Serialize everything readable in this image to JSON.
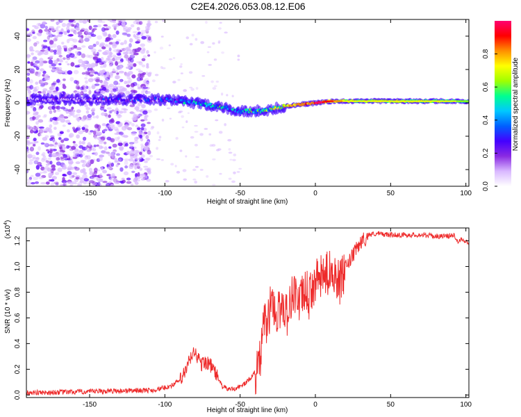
{
  "title": "C2E4.2026.053.08.12.E06",
  "chart_data": [
    {
      "type": "heatmap",
      "xlabel": "Height of straight line (km)",
      "ylabel": "Frequency (Hz)",
      "xlim": [
        -192,
        102
      ],
      "ylim": [
        -50,
        50
      ],
      "xticks": [
        -150,
        -100,
        -50,
        0,
        50,
        100
      ],
      "yticks": [
        -40,
        -20,
        0,
        20,
        40
      ],
      "colorbar": {
        "label": "Normalized spectral amplitude",
        "range": [
          0.0,
          1.0
        ],
        "ticks": [
          0.0,
          0.2,
          0.4,
          0.6,
          0.8
        ],
        "tick_labels": [
          "0.0",
          "0.2",
          "0.4",
          "0.6",
          "0.8"
        ],
        "colors": [
          "#ffffff",
          "#d9b8ff",
          "#8a2be2",
          "#4400ff",
          "#0060ff",
          "#00c8ff",
          "#00ff90",
          "#a0ff00",
          "#ffff00",
          "#ff9000",
          "#ff0000",
          "#ff0070"
        ]
      },
      "ridge": {
        "height_km": [
          -190,
          -150,
          -120,
          -100,
          -80,
          -60,
          -50,
          -40,
          -30,
          -20,
          -10,
          0,
          10,
          20,
          50,
          80,
          100
        ],
        "frequency_hz": [
          2,
          2,
          2,
          2,
          0,
          -3,
          -5,
          -5,
          -4,
          -2,
          -1,
          0,
          1,
          1,
          1,
          1,
          1
        ],
        "amplitude": [
          0.1,
          0.15,
          0.2,
          0.3,
          0.4,
          0.45,
          0.4,
          0.45,
          0.55,
          0.7,
          0.8,
          0.85,
          0.75,
          0.6,
          0.6,
          0.6,
          0.5
        ]
      },
      "noise_region_km": [
        -192,
        -110
      ]
    },
    {
      "type": "line",
      "title": "",
      "xlabel": "Height of straight line (km)",
      "ylabel": "SNR (10 * v/v)",
      "y_multiplier_label": "(x10",
      "y_multiplier_exponent": "4",
      "xlim": [
        -192,
        102
      ],
      "ylim": [
        -0.02,
        1.3
      ],
      "xticks": [
        -150,
        -100,
        -50,
        0,
        50,
        100
      ],
      "yticks": [
        0.0,
        0.2,
        0.4,
        0.6,
        0.8,
        1.0,
        1.2
      ],
      "ytick_labels": [
        "0.0",
        "0.2",
        "0.4",
        "0.6",
        "0.8",
        "1.0",
        "1.2"
      ],
      "series": [
        {
          "name": "SNR",
          "color": "#ee2b2b",
          "x": [
            -192,
            -150,
            -120,
            -108,
            -100,
            -95,
            -90,
            -86,
            -83,
            -80,
            -78,
            -76,
            -72,
            -68,
            -65,
            -62,
            -58,
            -55,
            -50,
            -46,
            -42,
            -39,
            -36,
            -34,
            -32,
            -30,
            -28,
            -26,
            -24,
            -22,
            -20,
            -18,
            -16,
            -14,
            -12,
            -10,
            -8,
            -6,
            -4,
            -2,
            0,
            4,
            8,
            12,
            16,
            20,
            25,
            30,
            35,
            40,
            50,
            60,
            70,
            80,
            88,
            92,
            95,
            97,
            100,
            102
          ],
          "y": [
            0.02,
            0.03,
            0.04,
            0.04,
            0.06,
            0.08,
            0.12,
            0.2,
            0.3,
            0.35,
            0.3,
            0.25,
            0.27,
            0.22,
            0.15,
            0.07,
            0.05,
            0.05,
            0.07,
            0.1,
            0.15,
            0.2,
            0.35,
            0.65,
            0.55,
            0.72,
            0.78,
            0.62,
            0.7,
            0.75,
            0.7,
            0.65,
            0.8,
            0.85,
            0.78,
            0.75,
            0.82,
            0.85,
            0.78,
            0.88,
            0.92,
            0.95,
            0.98,
            1.02,
            0.9,
            1.0,
            1.1,
            1.2,
            1.25,
            1.26,
            1.25,
            1.25,
            1.25,
            1.24,
            1.24,
            1.25,
            1.2,
            1.22,
            1.2,
            1.18
          ],
          "noise_amplitude": 0.04
        }
      ]
    }
  ]
}
